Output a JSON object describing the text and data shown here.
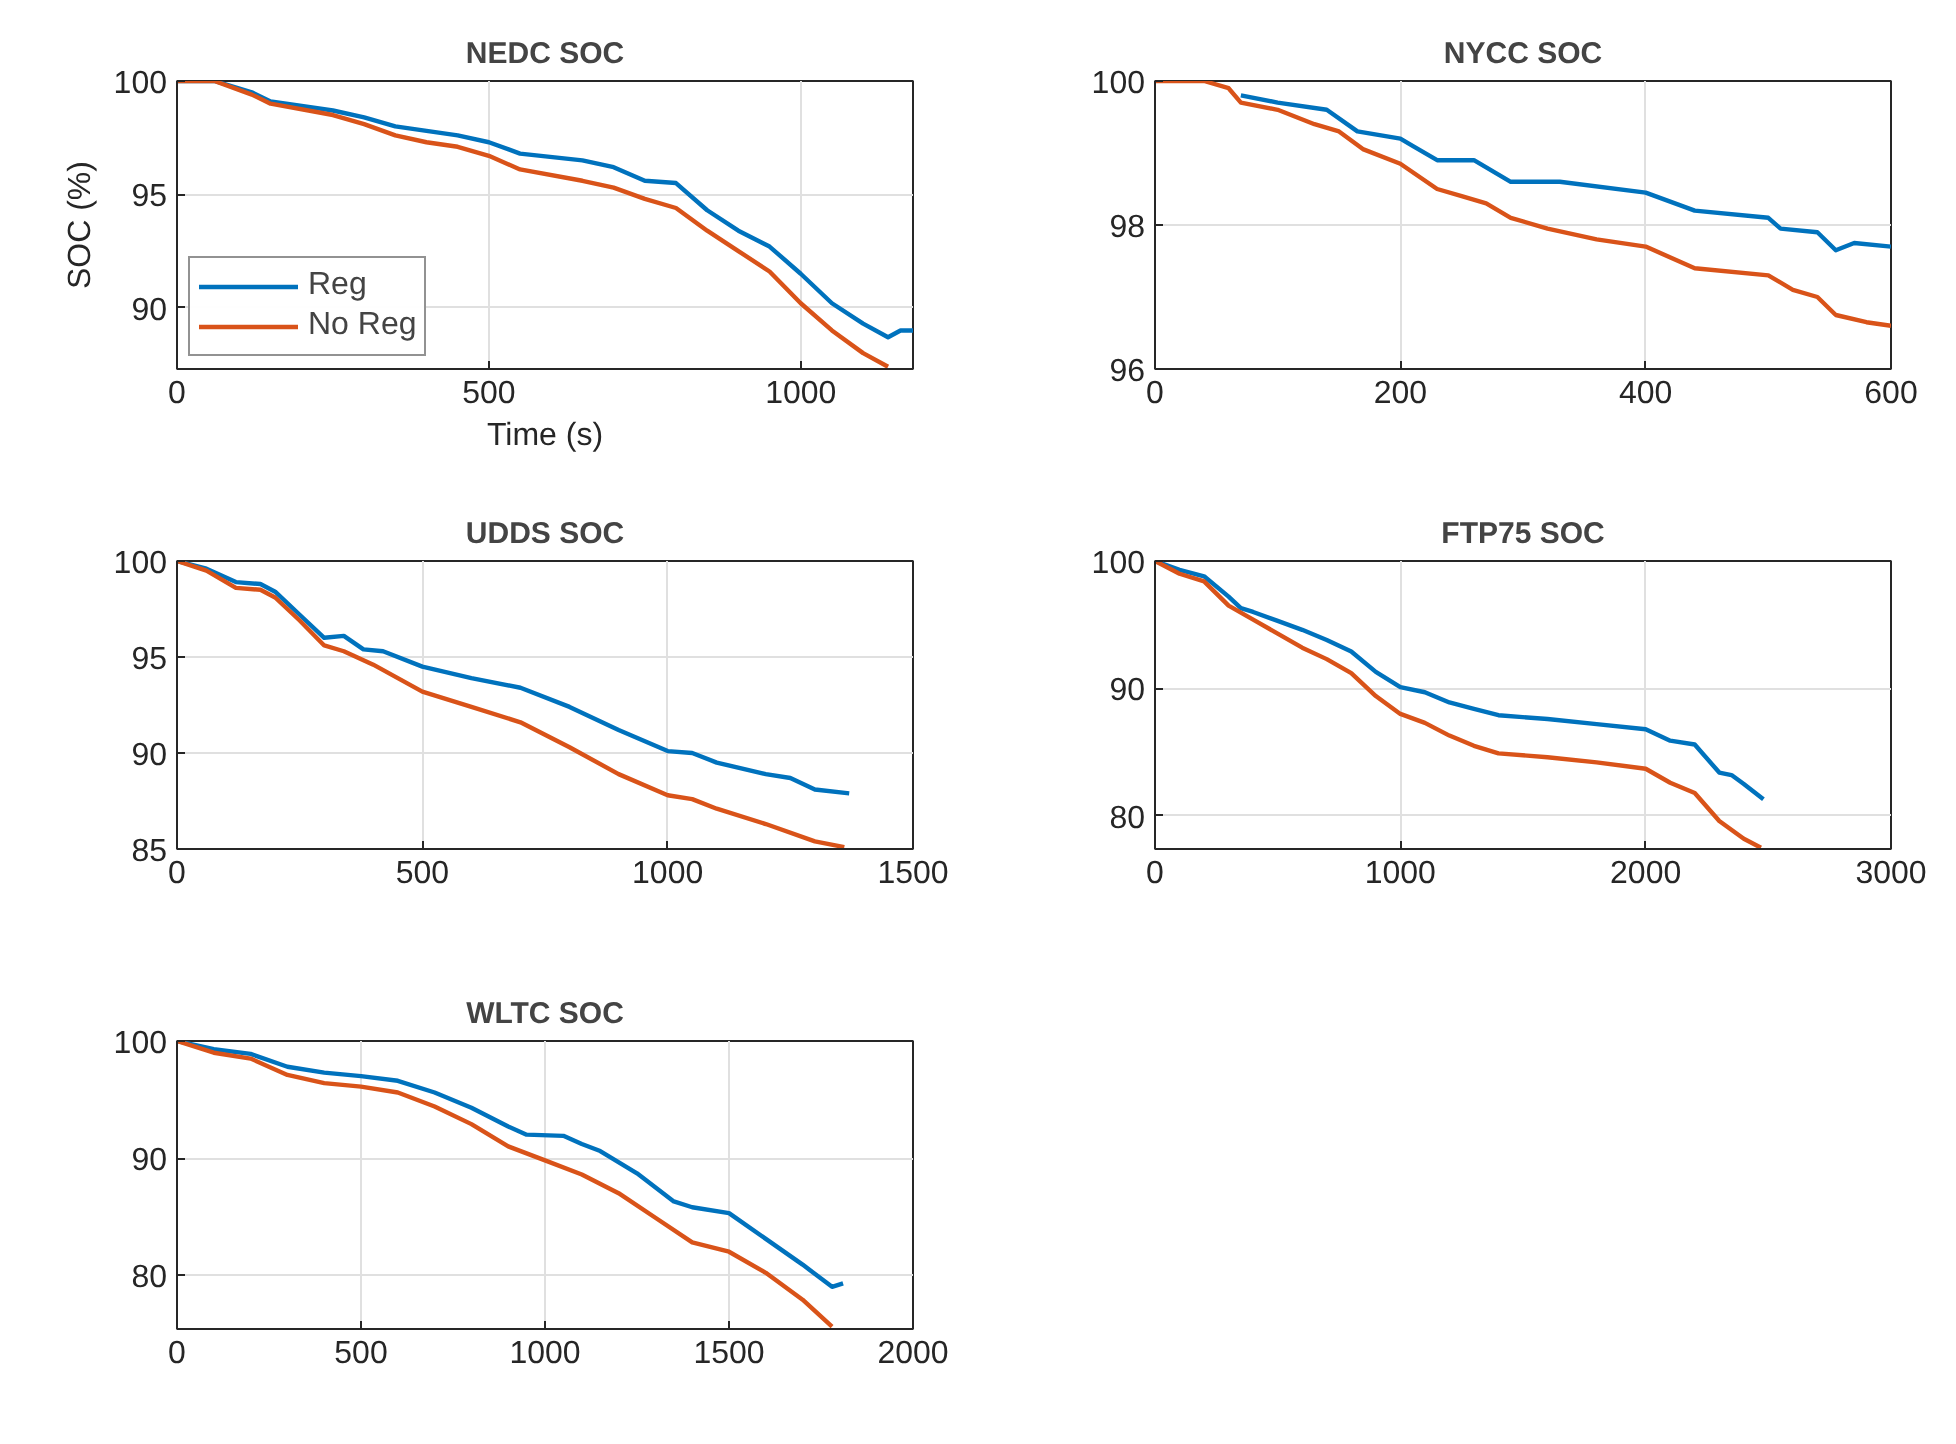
{
  "chart_data": [
    {
      "type": "line",
      "title": "NEDC SOC",
      "xlabel": "Time (s)",
      "ylabel": "SOC (%)",
      "xlim": [
        0,
        1180
      ],
      "ylim": [
        87.3,
        100
      ],
      "xticks": [
        0,
        500,
        1000
      ],
      "yticks": [
        90,
        95,
        100
      ],
      "grid": true,
      "legend": "bottom left",
      "series": [
        {
          "name": "Reg",
          "color": "#0072bd",
          "x": [
            0,
            60,
            120,
            150,
            250,
            300,
            350,
            400,
            450,
            500,
            550,
            650,
            700,
            750,
            800,
            850,
            900,
            950,
            1000,
            1050,
            1100,
            1140,
            1160,
            1180
          ],
          "values": [
            100,
            100,
            99.5,
            99.1,
            98.7,
            98.4,
            98.0,
            97.8,
            97.6,
            97.3,
            96.8,
            96.5,
            96.2,
            95.6,
            95.5,
            94.3,
            93.4,
            92.7,
            91.5,
            90.2,
            89.3,
            88.7,
            89.0,
            89.0
          ]
        },
        {
          "name": "No Reg",
          "color": "#d95319",
          "x": [
            0,
            60,
            120,
            150,
            250,
            300,
            350,
            400,
            450,
            500,
            550,
            650,
            700,
            750,
            800,
            850,
            900,
            950,
            1000,
            1050,
            1100,
            1140
          ],
          "values": [
            100,
            100,
            99.4,
            99.0,
            98.5,
            98.1,
            97.6,
            97.3,
            97.1,
            96.7,
            96.1,
            95.6,
            95.3,
            94.8,
            94.4,
            93.4,
            92.5,
            91.6,
            90.2,
            89.0,
            88.0,
            87.4
          ]
        }
      ]
    },
    {
      "type": "line",
      "title": "NYCC SOC",
      "xlim": [
        0,
        600
      ],
      "ylim": [
        96,
        100
      ],
      "xticks": [
        0,
        200,
        400,
        600
      ],
      "yticks": [
        96,
        98,
        100
      ],
      "grid": true,
      "series": [
        {
          "color": "#0072bd",
          "x": [
            70,
            100,
            140,
            165,
            200,
            210,
            230,
            260,
            290,
            330,
            400,
            440,
            500,
            510,
            540,
            555,
            570,
            600
          ],
          "values": [
            99.8,
            99.7,
            99.6,
            99.3,
            99.2,
            99.1,
            98.9,
            98.9,
            98.6,
            98.6,
            98.45,
            98.2,
            98.1,
            97.95,
            97.9,
            97.65,
            97.75,
            97.7
          ]
        },
        {
          "color": "#d95319",
          "x": [
            0,
            40,
            60,
            70,
            100,
            130,
            150,
            170,
            200,
            230,
            250,
            270,
            290,
            320,
            360,
            400,
            440,
            500,
            520,
            540,
            555,
            580,
            600
          ],
          "values": [
            100,
            100,
            99.9,
            99.7,
            99.6,
            99.4,
            99.3,
            99.05,
            98.85,
            98.5,
            98.4,
            98.3,
            98.1,
            97.95,
            97.8,
            97.7,
            97.4,
            97.3,
            97.1,
            97.0,
            96.75,
            96.65,
            96.6
          ]
        }
      ]
    },
    {
      "type": "line",
      "title": "UDDS SOC",
      "xlim": [
        0,
        1500
      ],
      "ylim": [
        85,
        100
      ],
      "xticks": [
        0,
        500,
        1000,
        1500
      ],
      "yticks": [
        85,
        90,
        95,
        100
      ],
      "grid": true,
      "series": [
        {
          "color": "#0072bd",
          "x": [
            0,
            60,
            120,
            170,
            200,
            250,
            300,
            340,
            380,
            420,
            500,
            600,
            700,
            800,
            900,
            1000,
            1050,
            1100,
            1200,
            1250,
            1300,
            1370
          ],
          "values": [
            100,
            99.6,
            98.9,
            98.8,
            98.4,
            97.2,
            96.0,
            96.1,
            95.4,
            95.3,
            94.5,
            93.9,
            93.4,
            92.4,
            91.2,
            90.1,
            90.0,
            89.5,
            88.9,
            88.7,
            88.1,
            87.9
          ]
        },
        {
          "color": "#d95319",
          "x": [
            0,
            60,
            120,
            170,
            200,
            250,
            300,
            340,
            400,
            500,
            600,
            700,
            800,
            900,
            1000,
            1050,
            1100,
            1200,
            1300,
            1360
          ],
          "values": [
            100,
            99.5,
            98.6,
            98.5,
            98.1,
            96.9,
            95.6,
            95.3,
            94.6,
            93.2,
            92.4,
            91.6,
            90.3,
            88.9,
            87.8,
            87.6,
            87.1,
            86.3,
            85.4,
            85.1
          ]
        }
      ]
    },
    {
      "type": "line",
      "title": "FTP75 SOC",
      "xlim": [
        0,
        3000
      ],
      "ylim": [
        77.4,
        100
      ],
      "xticks": [
        0,
        1000,
        2000,
        3000
      ],
      "yticks": [
        80,
        90,
        100
      ],
      "grid": true,
      "series": [
        {
          "color": "#0072bd",
          "x": [
            0,
            100,
            200,
            300,
            350,
            400,
            500,
            600,
            700,
            800,
            900,
            1000,
            1100,
            1200,
            1300,
            1400,
            1600,
            1800,
            2000,
            2100,
            2200,
            2300,
            2350,
            2400,
            2480
          ],
          "values": [
            100,
            99.3,
            98.8,
            97.2,
            96.3,
            96.0,
            95.3,
            94.6,
            93.8,
            92.9,
            91.3,
            90.1,
            89.7,
            88.9,
            88.4,
            87.9,
            87.6,
            87.2,
            86.8,
            85.9,
            85.6,
            83.4,
            83.2,
            82.5,
            81.3
          ]
        },
        {
          "color": "#d95319",
          "x": [
            0,
            100,
            200,
            300,
            400,
            500,
            600,
            700,
            800,
            900,
            1000,
            1100,
            1200,
            1300,
            1400,
            1600,
            1800,
            2000,
            2100,
            2200,
            2300,
            2400,
            2470
          ],
          "values": [
            100,
            99.0,
            98.4,
            96.5,
            95.4,
            94.3,
            93.2,
            92.3,
            91.2,
            89.4,
            88.0,
            87.3,
            86.3,
            85.5,
            84.9,
            84.6,
            84.2,
            83.7,
            82.6,
            81.8,
            79.6,
            78.2,
            77.5
          ]
        }
      ]
    },
    {
      "type": "line",
      "title": "WLTC SOC",
      "xlim": [
        0,
        2000
      ],
      "ylim": [
        75.4,
        100
      ],
      "xticks": [
        0,
        500,
        1000,
        1500,
        2000
      ],
      "yticks": [
        80,
        90,
        100
      ],
      "grid": true,
      "series": [
        {
          "color": "#0072bd",
          "x": [
            0,
            100,
            200,
            300,
            400,
            500,
            600,
            700,
            800,
            900,
            950,
            1050,
            1100,
            1150,
            1250,
            1350,
            1400,
            1500,
            1600,
            1700,
            1780,
            1810
          ],
          "values": [
            100,
            99.3,
            98.9,
            97.8,
            97.3,
            97.0,
            96.6,
            95.6,
            94.3,
            92.7,
            92.0,
            91.9,
            91.2,
            90.6,
            88.7,
            86.3,
            85.8,
            85.3,
            83.1,
            80.9,
            79.0,
            79.3
          ]
        },
        {
          "color": "#d95319",
          "x": [
            0,
            100,
            200,
            300,
            400,
            500,
            600,
            700,
            800,
            900,
            1000,
            1100,
            1200,
            1300,
            1400,
            1500,
            1600,
            1700,
            1780
          ],
          "values": [
            100,
            99.0,
            98.5,
            97.1,
            96.4,
            96.1,
            95.6,
            94.4,
            92.9,
            91.0,
            89.8,
            88.6,
            87.0,
            84.9,
            82.8,
            82.0,
            80.2,
            77.9,
            75.6
          ]
        }
      ]
    }
  ]
}
